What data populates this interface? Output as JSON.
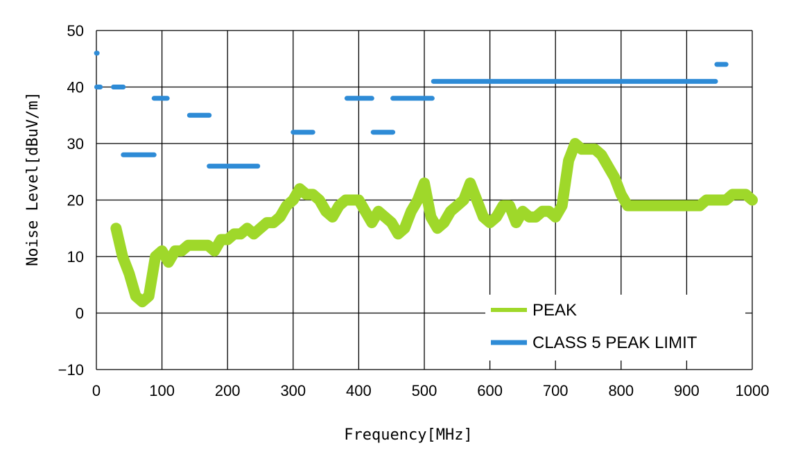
{
  "chart_data": {
    "type": "line",
    "title": "",
    "xlabel": "Frequency[MHz]",
    "ylabel": "Noise Level[dBuV/m]",
    "xlim": [
      0,
      1000
    ],
    "ylim": [
      -10,
      50
    ],
    "xticks": [
      "0",
      "100",
      "200",
      "300",
      "400",
      "500",
      "600",
      "700",
      "800",
      "900",
      "1000"
    ],
    "yticks": [
      "-10",
      "0",
      "10",
      "20",
      "30",
      "40",
      "50"
    ],
    "grid": true,
    "legend_position": "bottom-right",
    "colors": {
      "peak": "#9fd82a",
      "limit": "#2e8bd6"
    },
    "series": [
      {
        "name": "PEAK",
        "x": [
          30,
          40,
          50,
          60,
          70,
          80,
          90,
          100,
          110,
          120,
          130,
          140,
          150,
          160,
          170,
          180,
          190,
          200,
          210,
          220,
          230,
          240,
          250,
          260,
          270,
          280,
          290,
          300,
          310,
          320,
          330,
          340,
          350,
          360,
          370,
          380,
          390,
          400,
          410,
          420,
          430,
          440,
          450,
          460,
          470,
          480,
          490,
          500,
          510,
          520,
          530,
          540,
          550,
          560,
          570,
          580,
          590,
          600,
          610,
          620,
          630,
          640,
          650,
          660,
          670,
          680,
          690,
          700,
          710,
          720,
          730,
          740,
          750,
          760,
          770,
          780,
          790,
          800,
          810,
          820,
          830,
          840,
          850,
          860,
          870,
          880,
          890,
          900,
          910,
          920,
          930,
          940,
          950,
          960,
          970,
          980,
          990,
          1000
        ],
        "y": [
          15,
          10,
          7,
          3,
          2,
          3,
          10,
          11,
          9,
          11,
          11,
          12,
          12,
          12,
          12,
          11,
          13,
          13,
          14,
          14,
          15,
          14,
          15,
          16,
          16,
          17,
          19,
          20,
          22,
          21,
          21,
          20,
          18,
          17,
          19,
          20,
          20,
          20,
          18,
          16,
          18,
          17,
          16,
          14,
          15,
          18,
          20,
          23,
          17,
          15,
          16,
          18,
          19,
          20,
          23,
          20,
          17,
          16,
          17,
          19,
          19,
          16,
          18,
          17,
          17,
          18,
          18,
          17,
          19,
          27,
          30,
          29,
          29,
          29,
          28,
          26,
          24,
          21,
          19,
          19,
          19,
          19,
          19,
          19,
          19,
          19,
          19,
          19,
          19,
          19,
          20,
          20,
          20,
          20,
          21,
          21,
          21,
          20
        ]
      },
      {
        "name": "CLASS 5 PEAK LIMIT",
        "segments": [
          {
            "from": 0.15,
            "to": 0.3,
            "level": 46
          },
          {
            "from": 0.5,
            "to": 6,
            "level": 40
          },
          {
            "from": 26,
            "to": 41,
            "level": 40
          },
          {
            "from": 41,
            "to": 88,
            "level": 28
          },
          {
            "from": 88,
            "to": 108,
            "level": 38
          },
          {
            "from": 142,
            "to": 172,
            "level": 35
          },
          {
            "from": 172,
            "to": 246,
            "level": 26
          },
          {
            "from": 300,
            "to": 330,
            "level": 32
          },
          {
            "from": 382,
            "to": 420,
            "level": 38
          },
          {
            "from": 422,
            "to": 452,
            "level": 32
          },
          {
            "from": 452,
            "to": 512,
            "level": 38
          },
          {
            "from": 514,
            "to": 944,
            "level": 41
          },
          {
            "from": 946,
            "to": 960,
            "level": 44
          }
        ]
      }
    ]
  }
}
